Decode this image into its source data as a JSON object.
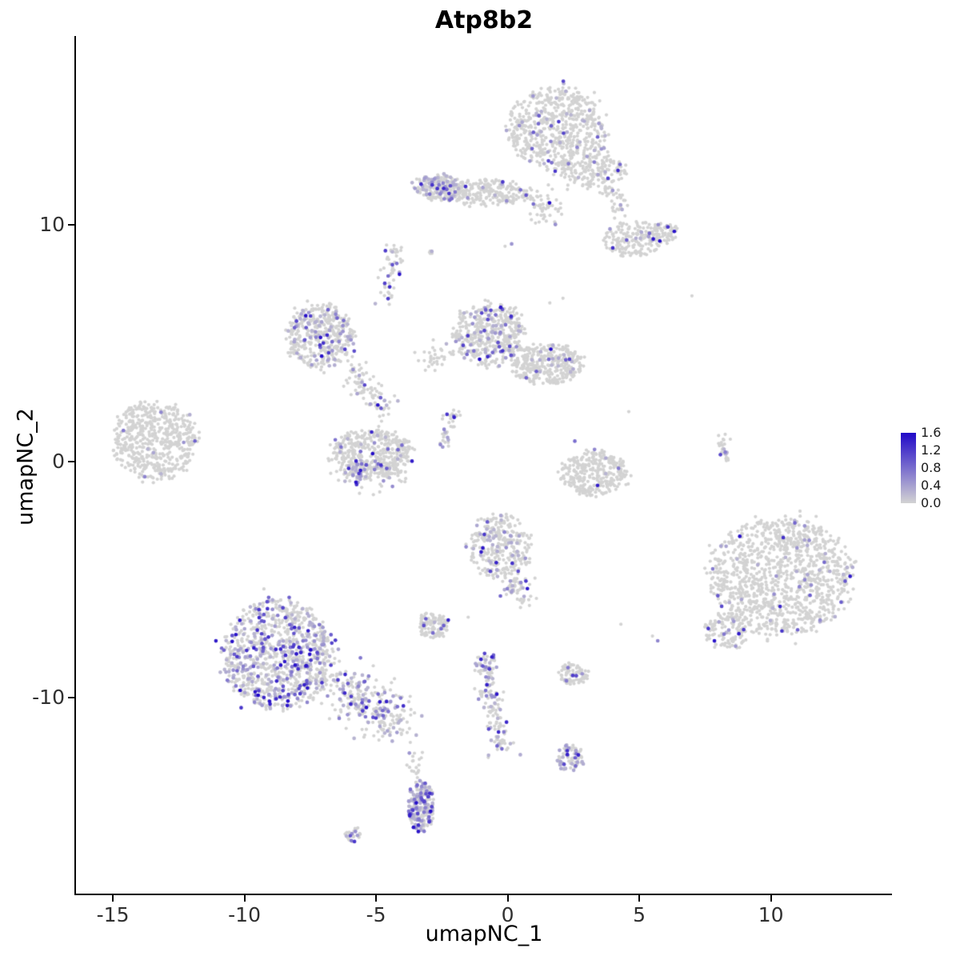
{
  "chart_data": {
    "type": "scatter",
    "title": "Atp8b2",
    "xlabel": "umapNC_1",
    "ylabel": "umapNC_2",
    "xlim": [
      -16.4,
      14.6
    ],
    "ylim": [
      -18.3,
      18.0
    ],
    "grid": false,
    "x_tick_values": [
      -15,
      -10,
      -5,
      0,
      5,
      10
    ],
    "x_tick_labels": [
      "-15",
      "-10",
      "-5",
      "0",
      "5",
      "10"
    ],
    "y_tick_values": [
      10,
      0,
      -10
    ],
    "y_tick_labels": [
      "10",
      "0",
      "-10"
    ],
    "legend": {
      "position": "right",
      "min": 0.0,
      "max": 1.6,
      "tick_values": [
        1.6,
        1.2,
        0.8,
        0.4,
        0.0
      ],
      "tick_labels": [
        "1.6",
        "1.2",
        "0.8",
        "0.4",
        "0.0"
      ]
    },
    "colors": {
      "low": "#d3d3d3",
      "high": "#2008c8",
      "axis": "#000000",
      "tick_text": "#303030"
    },
    "point_radius_px": 2.1,
    "clusters": [
      {
        "name": "top-main",
        "cx": 1.9,
        "cy": 14.1,
        "rx": 1.85,
        "ry": 1.75,
        "n": 620,
        "frac": 0.1
      },
      {
        "name": "top-right-bridge",
        "cx": 3.6,
        "cy": 12.2,
        "rx": 0.9,
        "ry": 0.8,
        "n": 130,
        "frac": 0.07
      },
      {
        "name": "top-bridge-chain",
        "type": "streak",
        "x1": 2.2,
        "y1": 13.2,
        "x2": 2.5,
        "y2": 11.8,
        "w": 0.22,
        "n": 45,
        "frac": 0.05
      },
      {
        "name": "upper-right-blob",
        "cx": 4.8,
        "cy": 9.4,
        "rx": 1.1,
        "ry": 0.75,
        "n": 170,
        "frac": 0.06
      },
      {
        "name": "upper-right-small",
        "cx": 5.9,
        "cy": 9.7,
        "rx": 0.55,
        "ry": 0.5,
        "n": 60,
        "frac": 0.15
      },
      {
        "name": "upper-right-chain",
        "type": "streak",
        "x1": 3.9,
        "y1": 11.5,
        "x2": 4.5,
        "y2": 10.2,
        "w": 0.2,
        "n": 35,
        "frac": 0.06
      },
      {
        "name": "band-left-dense",
        "cx": -2.7,
        "cy": 11.6,
        "rx": 0.85,
        "ry": 0.55,
        "n": 210,
        "frac": 0.3
      },
      {
        "name": "band-right",
        "cx": -0.9,
        "cy": 11.4,
        "rx": 1.7,
        "ry": 0.55,
        "n": 260,
        "frac": 0.05
      },
      {
        "name": "band-tail",
        "type": "streak",
        "x1": 0.9,
        "y1": 11.2,
        "x2": 1.7,
        "y2": 10.4,
        "w": 0.3,
        "n": 60,
        "frac": 0.05
      },
      {
        "name": "left-vertical-chain",
        "type": "streak",
        "x1": -4.4,
        "y1": 9.0,
        "x2": -4.6,
        "y2": 6.9,
        "w": 0.18,
        "n": 55,
        "frac": 0.25
      },
      {
        "name": "tiny-pair",
        "cx": -2.9,
        "cy": 8.85,
        "rx": 0.18,
        "ry": 0.15,
        "n": 5,
        "frac": 0.4
      },
      {
        "name": "midleft-cluster",
        "cx": -7.1,
        "cy": 5.3,
        "rx": 1.25,
        "ry": 1.4,
        "n": 430,
        "frac": 0.16
      },
      {
        "name": "midleft-arc",
        "type": "streak",
        "x1": -6.1,
        "y1": 4.1,
        "x2": -4.6,
        "y2": 2.2,
        "w": 0.28,
        "n": 90,
        "frac": 0.18
      },
      {
        "name": "center-cluster",
        "cx": -0.7,
        "cy": 5.4,
        "rx": 1.35,
        "ry": 1.3,
        "n": 470,
        "frac": 0.12
      },
      {
        "name": "center-right-cluster",
        "cx": 1.5,
        "cy": 4.1,
        "rx": 1.35,
        "ry": 0.85,
        "n": 360,
        "frac": 0.08
      },
      {
        "name": "center-bridge",
        "type": "streak",
        "x1": -2.2,
        "y1": 4.6,
        "x2": -3.3,
        "y2": 4.2,
        "w": 0.25,
        "n": 35,
        "frac": 0.05
      },
      {
        "name": "far-left-cluster",
        "cx": -13.4,
        "cy": 0.9,
        "rx": 1.55,
        "ry": 1.65,
        "n": 560,
        "frac": 0.015
      },
      {
        "name": "mid-crescent",
        "cx": -5.2,
        "cy": 0.3,
        "rx": 1.55,
        "ry": 1.05,
        "n": 430,
        "frac": 0.07
      },
      {
        "name": "mid-crescent-bottom",
        "type": "streak",
        "x1": -6.2,
        "y1": -0.4,
        "x2": -4.3,
        "y2": -0.6,
        "w": 0.3,
        "n": 90,
        "frac": 0.35
      },
      {
        "name": "small-diag-streak",
        "type": "streak",
        "x1": -2.45,
        "y1": 0.6,
        "x2": -2.0,
        "y2": 2.2,
        "w": 0.15,
        "n": 35,
        "frac": 0.15
      },
      {
        "name": "right-crescent",
        "cx": 3.3,
        "cy": -0.5,
        "rx": 1.25,
        "ry": 0.95,
        "n": 320,
        "frac": 0.03
      },
      {
        "name": "mid-lower-cluster",
        "cx": -0.3,
        "cy": -3.6,
        "rx": 1.2,
        "ry": 1.35,
        "n": 300,
        "frac": 0.15
      },
      {
        "name": "mid-lower-tail",
        "type": "streak",
        "x1": 0.2,
        "y1": -4.8,
        "x2": 0.6,
        "y2": -5.9,
        "w": 0.25,
        "n": 60,
        "frac": 0.2
      },
      {
        "name": "small-left-blob",
        "cx": -2.85,
        "cy": -6.95,
        "rx": 0.6,
        "ry": 0.55,
        "n": 110,
        "frac": 0.07
      },
      {
        "name": "bottom-left-main",
        "cx": -8.7,
        "cy": -8.2,
        "rx": 2.1,
        "ry": 2.3,
        "n": 950,
        "frac": 0.33
      },
      {
        "name": "bottom-left-arm",
        "type": "streak",
        "x1": -6.6,
        "y1": -9.3,
        "x2": -4.2,
        "y2": -11.0,
        "w": 0.55,
        "n": 280,
        "frac": 0.3
      },
      {
        "name": "bottom-mid-top",
        "cx": -0.85,
        "cy": -8.6,
        "rx": 0.45,
        "ry": 0.5,
        "n": 50,
        "frac": 0.25
      },
      {
        "name": "bottom-mid-streak",
        "type": "streak",
        "x1": -0.75,
        "y1": -9.3,
        "x2": -0.25,
        "y2": -12.3,
        "w": 0.22,
        "n": 110,
        "frac": 0.3
      },
      {
        "name": "small-mid-blob",
        "cx": 2.5,
        "cy": -9.0,
        "rx": 0.55,
        "ry": 0.45,
        "n": 85,
        "frac": 0.12
      },
      {
        "name": "small-lower-blob",
        "cx": 2.4,
        "cy": -12.6,
        "rx": 0.5,
        "ry": 0.6,
        "n": 75,
        "frac": 0.35
      },
      {
        "name": "bottom-dense-blob",
        "cx": -3.3,
        "cy": -14.6,
        "rx": 0.5,
        "ry": 1.05,
        "n": 210,
        "frac": 0.5
      },
      {
        "name": "bottom-dense-tail",
        "type": "streak",
        "x1": -3.45,
        "y1": -12.3,
        "x2": -3.55,
        "y2": -13.3,
        "w": 0.15,
        "n": 18,
        "frac": 0.1
      },
      {
        "name": "bottom-tiny-blob",
        "cx": -5.9,
        "cy": -15.8,
        "rx": 0.3,
        "ry": 0.35,
        "n": 28,
        "frac": 0.1
      },
      {
        "name": "right-main-cluster",
        "cx": 10.4,
        "cy": -4.9,
        "rx": 2.65,
        "ry": 2.45,
        "n": 1150,
        "frac": 0.045
      },
      {
        "name": "right-cluster-arm",
        "cx": 8.3,
        "cy": -7.2,
        "rx": 0.8,
        "ry": 0.8,
        "n": 120,
        "frac": 0.08
      },
      {
        "name": "right-small-streak",
        "type": "streak",
        "x1": 8.2,
        "y1": 1.2,
        "x2": 8.25,
        "y2": 0.1,
        "w": 0.12,
        "n": 26,
        "frac": 0.3
      }
    ],
    "singles": [
      {
        "x": 7.0,
        "y": 7.0,
        "v": 0
      },
      {
        "x": 4.6,
        "y": 2.1,
        "v": 0
      },
      {
        "x": 5.5,
        "y": -7.4,
        "v": 0
      },
      {
        "x": 5.7,
        "y": -7.6,
        "v": 0.6
      },
      {
        "x": 4.3,
        "y": -6.9,
        "v": 0
      },
      {
        "x": 0.15,
        "y": 9.2,
        "v": 0.5
      },
      {
        "x": -0.1,
        "y": 9.1,
        "v": 0
      },
      {
        "x": -3.7,
        "y": -11.9,
        "v": 0
      },
      {
        "x": 2.1,
        "y": 6.9,
        "v": 0
      },
      {
        "x": 1.6,
        "y": 6.7,
        "v": 0
      },
      {
        "x": 0.3,
        "y": 6.5,
        "v": 0
      },
      {
        "x": -1.5,
        "y": -6.6,
        "v": 0
      },
      {
        "x": 2.55,
        "y": 0.85,
        "v": 0.8
      },
      {
        "x": 3.3,
        "y": 0.5,
        "v": 0.6
      },
      {
        "x": -14.6,
        "y": 1.3,
        "v": 0.7
      }
    ]
  }
}
